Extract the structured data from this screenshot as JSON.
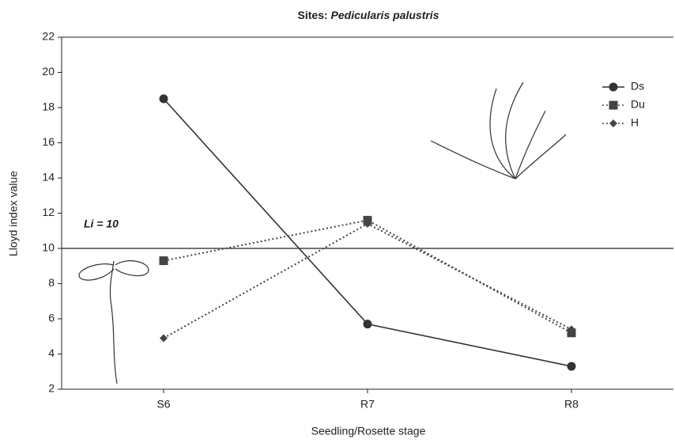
{
  "chart_data": {
    "type": "line",
    "title": {
      "prefix": "Sites:",
      "species": "Pedicularis palustris"
    },
    "x_label": "Seedling/Rosette stage",
    "y_label": "Lloyd index value",
    "categories": [
      "S6",
      "R7",
      "R8"
    ],
    "series": [
      {
        "name": "Ds",
        "color": "#333333",
        "line_style": "solid",
        "marker": "circle",
        "values": [
          18.5,
          5.7,
          3.3
        ]
      },
      {
        "name": "Du",
        "color": "#444444",
        "line_style": "dotted",
        "marker": "square",
        "values": [
          9.3,
          11.6,
          5.2
        ]
      },
      {
        "name": "H",
        "color": "#444444",
        "line_style": "dotted",
        "marker": "diamond",
        "values": [
          4.9,
          11.4,
          5.4
        ]
      }
    ],
    "reference_line": {
      "value": 10,
      "label": "Li = 10"
    },
    "ylim": [
      2,
      22
    ],
    "yticks": [
      2,
      4,
      6,
      8,
      10,
      12,
      14,
      16,
      18,
      20,
      22
    ],
    "legend": "upper-right"
  }
}
